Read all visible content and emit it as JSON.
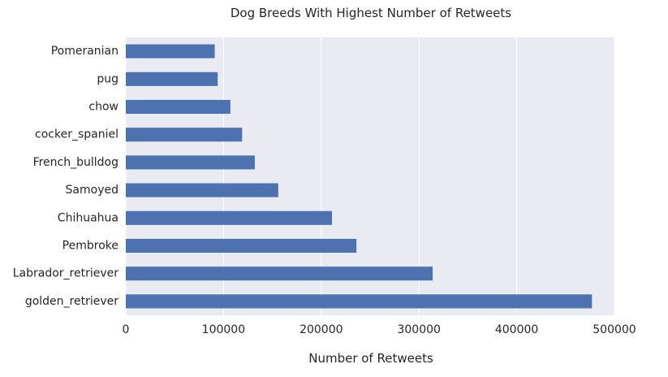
{
  "chart_data": {
    "type": "bar",
    "orientation": "horizontal",
    "title": "Dog Breeds With Highest Number of Retweets",
    "xlabel": "Number of Retweets",
    "ylabel": "",
    "categories": [
      "golden_retriever",
      "Labrador_retriever",
      "Pembroke",
      "Chihuahua",
      "Samoyed",
      "French_bulldog",
      "cocker_spaniel",
      "chow",
      "pug",
      "Pomeranian"
    ],
    "values": [
      477000,
      314000,
      236000,
      211000,
      156000,
      132000,
      119000,
      107000,
      94000,
      91000
    ],
    "xlim": [
      0,
      500000
    ],
    "xticks": [
      0,
      100000,
      200000,
      300000,
      400000,
      500000
    ],
    "xtick_labels": [
      "0",
      "100000",
      "200000",
      "300000",
      "400000",
      "500000"
    ],
    "grid": true,
    "bar_color": "#4c72b0",
    "background_color": "#eaeaf2",
    "grid_color": "#ffffff"
  }
}
